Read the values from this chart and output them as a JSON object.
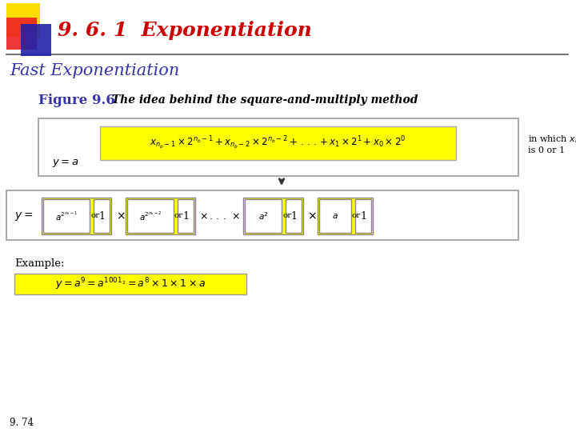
{
  "title": "9. 6. 1  Exponentiation",
  "subtitle": "Fast Exponentiation",
  "figure_label": "Figure 9.6",
  "figure_caption": "  The idea behind the square-and-multiply method",
  "page_number": "9. 74",
  "bg_color": "#ffffff",
  "title_color": "#cc0000",
  "subtitle_color": "#3333aa",
  "figure_label_color": "#3333aa",
  "yellow": "#ffff00",
  "arrow_color": "#333333"
}
